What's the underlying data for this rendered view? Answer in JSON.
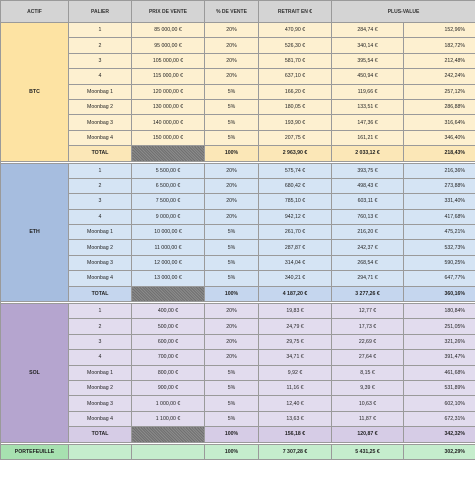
{
  "headers": [
    "ACTIF",
    "PALIER",
    "PRIX DE VENTE",
    "% DE VENTE",
    "RETRAIT EN €",
    "PLUS-VALUE"
  ],
  "colors": {
    "btc_asset": "#fde3a3",
    "btc_row": "#fdf0d0",
    "btc_total": "#fbe7b7",
    "eth_asset": "#a6bddf",
    "eth_row": "#d5e4f4",
    "eth_total": "#c5d6ee",
    "sol_asset": "#b5a5cf",
    "sol_row": "#e2dcee",
    "sol_total": "#d6cce6",
    "portfolio": "#c5edcd"
  },
  "assets": [
    {
      "name": "BTC",
      "key": "btc",
      "rows": [
        {
          "palier": "1",
          "prix": "85 000,00 €",
          "pct": "20%",
          "retrait": "470,90 €",
          "pv": "284,74 €",
          "pvp": "152,96%"
        },
        {
          "palier": "2",
          "prix": "95 000,00 €",
          "pct": "20%",
          "retrait": "526,30 €",
          "pv": "340,14 €",
          "pvp": "182,72%"
        },
        {
          "palier": "3",
          "prix": "105 000,00 €",
          "pct": "20%",
          "retrait": "581,70 €",
          "pv": "395,54 €",
          "pvp": "212,48%"
        },
        {
          "palier": "4",
          "prix": "115 000,00 €",
          "pct": "20%",
          "retrait": "637,10 €",
          "pv": "450,94 €",
          "pvp": "242,24%"
        },
        {
          "palier": "Moonbag 1",
          "prix": "120 000,00 €",
          "pct": "5%",
          "retrait": "166,20 €",
          "pv": "119,66 €",
          "pvp": "257,12%"
        },
        {
          "palier": "Moonbag 2",
          "prix": "130 000,00 €",
          "pct": "5%",
          "retrait": "180,05 €",
          "pv": "133,51 €",
          "pvp": "286,88%"
        },
        {
          "palier": "Moonbag 3",
          "prix": "140 000,00 €",
          "pct": "5%",
          "retrait": "193,90 €",
          "pv": "147,36 €",
          "pvp": "316,64%"
        },
        {
          "palier": "Moonbag 4",
          "prix": "150 000,00 €",
          "pct": "5%",
          "retrait": "207,75 €",
          "pv": "161,21 €",
          "pvp": "346,40%"
        }
      ],
      "total": {
        "label": "TOTAL",
        "pct": "100%",
        "retrait": "2 963,90 €",
        "pv": "2 033,12 €",
        "pvp": "218,43%"
      }
    },
    {
      "name": "ETH",
      "key": "eth",
      "rows": [
        {
          "palier": "1",
          "prix": "5 500,00 €",
          "pct": "20%",
          "retrait": "575,74 €",
          "pv": "393,75 €",
          "pvp": "216,36%"
        },
        {
          "palier": "2",
          "prix": "6 500,00 €",
          "pct": "20%",
          "retrait": "680,42 €",
          "pv": "498,43 €",
          "pvp": "273,88%"
        },
        {
          "palier": "3",
          "prix": "7 500,00 €",
          "pct": "20%",
          "retrait": "785,10 €",
          "pv": "603,11 €",
          "pvp": "331,40%"
        },
        {
          "palier": "4",
          "prix": "9 000,00 €",
          "pct": "20%",
          "retrait": "942,12 €",
          "pv": "760,13 €",
          "pvp": "417,68%"
        },
        {
          "palier": "Moonbag 1",
          "prix": "10 000,00 €",
          "pct": "5%",
          "retrait": "261,70 €",
          "pv": "216,20 €",
          "pvp": "475,21%"
        },
        {
          "palier": "Moonbag 2",
          "prix": "11 000,00 €",
          "pct": "5%",
          "retrait": "287,87 €",
          "pv": "242,37 €",
          "pvp": "532,73%"
        },
        {
          "palier": "Moonbag 3",
          "prix": "12 000,00 €",
          "pct": "5%",
          "retrait": "314,04 €",
          "pv": "268,54 €",
          "pvp": "590,25%"
        },
        {
          "palier": "Moonbag 4",
          "prix": "13 000,00 €",
          "pct": "5%",
          "retrait": "340,21 €",
          "pv": "294,71 €",
          "pvp": "647,77%"
        }
      ],
      "total": {
        "label": "TOTAL",
        "pct": "100%",
        "retrait": "4 187,20 €",
        "pv": "3 277,26 €",
        "pvp": "360,16%"
      }
    },
    {
      "name": "SOL",
      "key": "sol",
      "rows": [
        {
          "palier": "1",
          "prix": "400,00 €",
          "pct": "20%",
          "retrait": "19,83 €",
          "pv": "12,77 €",
          "pvp": "180,84%"
        },
        {
          "palier": "2",
          "prix": "500,00 €",
          "pct": "20%",
          "retrait": "24,79 €",
          "pv": "17,73 €",
          "pvp": "251,05%"
        },
        {
          "palier": "3",
          "prix": "600,00 €",
          "pct": "20%",
          "retrait": "29,75 €",
          "pv": "22,69 €",
          "pvp": "321,26%"
        },
        {
          "palier": "4",
          "prix": "700,00 €",
          "pct": "20%",
          "retrait": "34,71 €",
          "pv": "27,64 €",
          "pvp": "391,47%"
        },
        {
          "palier": "Moonbag 1",
          "prix": "800,00 €",
          "pct": "5%",
          "retrait": "9,92 €",
          "pv": "8,15 €",
          "pvp": "461,68%"
        },
        {
          "palier": "Moonbag 2",
          "prix": "900,00 €",
          "pct": "5%",
          "retrait": "11,16 €",
          "pv": "9,39 €",
          "pvp": "531,89%"
        },
        {
          "palier": "Moonbag 3",
          "prix": "1 000,00 €",
          "pct": "5%",
          "retrait": "12,40 €",
          "pv": "10,63 €",
          "pvp": "602,10%"
        },
        {
          "palier": "Moonbag 4",
          "prix": "1 100,00 €",
          "pct": "5%",
          "retrait": "13,63 €",
          "pv": "11,87 €",
          "pvp": "672,31%"
        }
      ],
      "total": {
        "label": "TOTAL",
        "pct": "100%",
        "retrait": "156,18 €",
        "pv": "120,87 €",
        "pvp": "342,32%"
      }
    }
  ],
  "portfolio": {
    "label": "PORTEFEUILLE",
    "pct": "100%",
    "retrait": "7 307,28 €",
    "pv": "5 431,25 €",
    "pvp": "302,29%"
  }
}
